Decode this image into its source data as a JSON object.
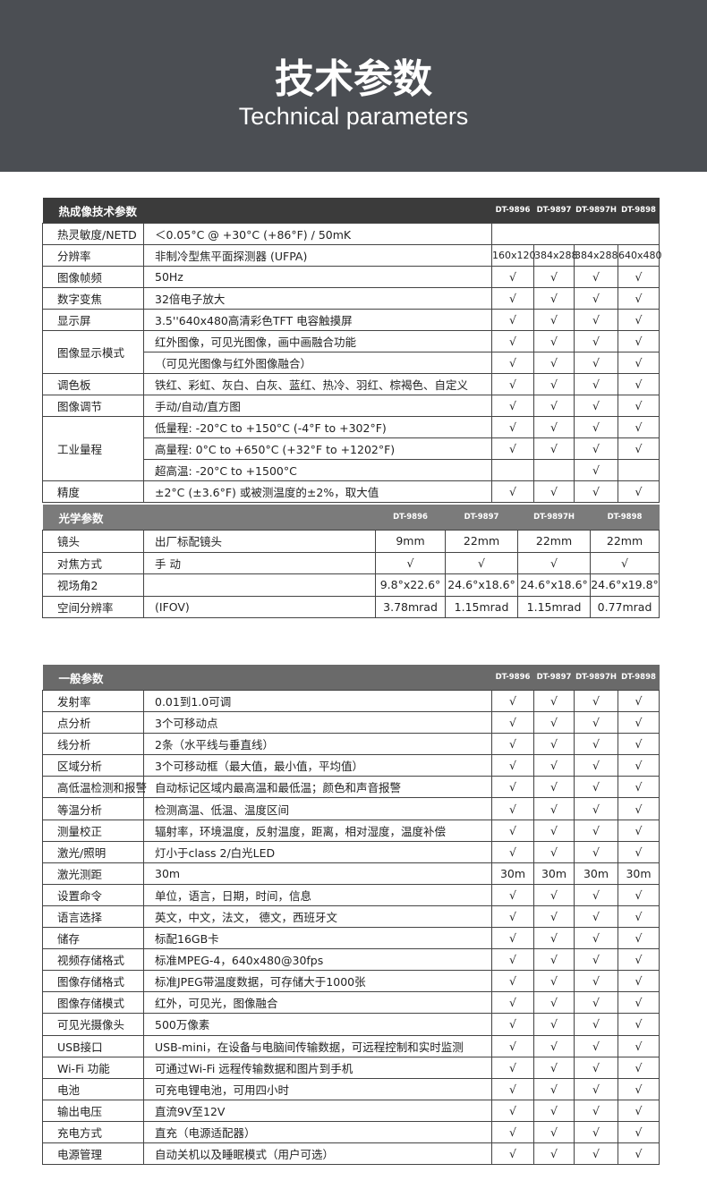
{
  "header": {
    "title": "技术参数",
    "subtitle": "Technical parameters"
  },
  "thermal": {
    "title": "热成像技术参数",
    "models": [
      "DT-9896",
      "DT-9897",
      "DT-9897H",
      "DT-9898"
    ],
    "rows": [
      {
        "label": "热灵敏度/NETD",
        "lines": [
          {
            "desc": "＜0.05°C @ +30°C (+86°F) / 50mK"
          }
        ]
      },
      {
        "label": "分辨率",
        "lines": [
          {
            "desc": "非制冷型焦平面探测器 (UFPA)",
            "cells": [
              "160x120",
              "384x288",
              "384x288",
              "640x480"
            ]
          }
        ]
      },
      {
        "label": "图像帧频",
        "lines": [
          {
            "desc": "50Hz",
            "cells": [
              "√",
              "√",
              "√",
              "√"
            ]
          }
        ]
      },
      {
        "label": "数字变焦",
        "lines": [
          {
            "desc": "32倍电子放大",
            "cells": [
              "√",
              "√",
              "√",
              "√"
            ]
          }
        ]
      },
      {
        "label": "显示屏",
        "lines": [
          {
            "desc": "3.5''640x480高清彩色TFT 电容触摸屏",
            "cells": [
              "√",
              "√",
              "√",
              "√"
            ]
          }
        ]
      },
      {
        "label": "图像显示模式",
        "lines": [
          {
            "desc": "红外图像，可见光图像，画中画融合功能",
            "cells": [
              "√",
              "√",
              "√",
              "√"
            ]
          },
          {
            "desc": "（可见光图像与红外图像融合）",
            "cells": [
              "√",
              "√",
              "√",
              "√"
            ]
          }
        ]
      },
      {
        "label": "调色板",
        "lines": [
          {
            "desc": "铁红、彩虹、灰白、白灰、蓝红、热冷、羽红、棕褐色、自定义",
            "cells": [
              "√",
              "√",
              "√",
              "√"
            ]
          }
        ]
      },
      {
        "label": "图像调节",
        "lines": [
          {
            "desc": "手动/自动/直方图",
            "cells": [
              "√",
              "√",
              "√",
              "√"
            ]
          }
        ]
      },
      {
        "label": "工业量程",
        "lines": [
          {
            "desc": "低量程: -20°C to +150°C (-4°F to +302°F)",
            "cells": [
              "√",
              "√",
              "√",
              "√"
            ]
          },
          {
            "desc": "高量程: 0°C to +650°C (+32°F to +1202°F)",
            "cells": [
              "√",
              "√",
              "√",
              "√"
            ]
          },
          {
            "desc": "超高温: -20°C to +1500°C",
            "cells": [
              null,
              null,
              "√",
              null
            ]
          }
        ]
      },
      {
        "label": "精度",
        "lines": [
          {
            "desc": "±2°C (±3.6°F) 或被测温度的±2%，取大值",
            "cells": [
              "√",
              "√",
              "√",
              "√"
            ]
          }
        ]
      }
    ]
  },
  "optical": {
    "title": "光学参数",
    "models": [
      "DT-9896",
      "DT-9897",
      "DT-9897H",
      "DT-9898"
    ],
    "rows": [
      {
        "label": "镜头",
        "lines": [
          {
            "desc": "出厂标配镜头",
            "cells": [
              "9mm",
              "22mm",
              "22mm",
              "22mm"
            ]
          }
        ]
      },
      {
        "label": "对焦方式",
        "lines": [
          {
            "desc": "手 动",
            "cells": [
              "√",
              "√",
              "√",
              "√"
            ]
          }
        ]
      },
      {
        "label": "视场角2",
        "lines": [
          {
            "desc": null,
            "cells": [
              "9.8°x22.6°",
              "24.6°x18.6°",
              "24.6°x18.6°",
              "24.6°x19.8°"
            ]
          }
        ]
      },
      {
        "label": "空间分辨率",
        "lines": [
          {
            "desc": "(IFOV)",
            "cells": [
              "3.78mrad",
              "1.15mrad",
              "1.15mrad",
              "0.77mrad"
            ]
          }
        ]
      }
    ]
  },
  "general": {
    "title": "一般参数",
    "models": [
      "DT-9896",
      "DT-9897",
      "DT-9897H",
      "DT-9898"
    ],
    "rows": [
      {
        "label": "发射率",
        "lines": [
          {
            "desc": "0.01到1.0可调",
            "cells": [
              "√",
              "√",
              "√",
              "√"
            ]
          }
        ]
      },
      {
        "label": "点分析",
        "lines": [
          {
            "desc": "3个可移动点",
            "cells": [
              "√",
              "√",
              "√",
              "√"
            ]
          }
        ]
      },
      {
        "label": "线分析",
        "lines": [
          {
            "desc": "2条（水平线与垂直线）",
            "cells": [
              "√",
              "√",
              "√",
              "√"
            ]
          }
        ]
      },
      {
        "label": "区域分析",
        "lines": [
          {
            "desc": "3个可移动框（最大值，最小值，平均值）",
            "cells": [
              "√",
              "√",
              "√",
              "√"
            ]
          }
        ]
      },
      {
        "label": "高低温检测和报警",
        "lines": [
          {
            "desc": "自动标记区域内最高温和最低温；颜色和声音报警",
            "cells": [
              "√",
              "√",
              "√",
              "√"
            ]
          }
        ]
      },
      {
        "label": "等温分析",
        "lines": [
          {
            "desc": "检测高温、低温、温度区间",
            "cells": [
              "√",
              "√",
              "√",
              "√"
            ]
          }
        ]
      },
      {
        "label": "测量校正",
        "lines": [
          {
            "desc": "辐射率，环境温度，反射温度，距离，相对湿度，温度补偿",
            "cells": [
              "√",
              "√",
              "√",
              "√"
            ]
          }
        ]
      },
      {
        "label": "激光/照明",
        "lines": [
          {
            "desc": "灯小于class 2/白光LED",
            "cells": [
              "√",
              "√",
              "√",
              "√"
            ]
          }
        ]
      },
      {
        "label": "激光测距",
        "lines": [
          {
            "desc": "30m",
            "cells": [
              "30m",
              "30m",
              "30m",
              "30m"
            ]
          }
        ]
      },
      {
        "label": "设置命令",
        "lines": [
          {
            "desc": "单位，语言，日期，时间，信息",
            "cells": [
              "√",
              "√",
              "√",
              "√"
            ]
          }
        ]
      },
      {
        "label": "语言选择",
        "lines": [
          {
            "desc": "英文，中文，法文， 德文，西班牙文",
            "cells": [
              "√",
              "√",
              "√",
              "√"
            ]
          }
        ]
      },
      {
        "label": "储存",
        "lines": [
          {
            "desc": "标配16GB卡",
            "cells": [
              "√",
              "√",
              "√",
              "√"
            ]
          }
        ]
      },
      {
        "label": "视频存储格式",
        "lines": [
          {
            "desc": "标准MPEG-4，640x480@30fps",
            "cells": [
              "√",
              "√",
              "√",
              "√"
            ]
          }
        ]
      },
      {
        "label": "图像存储格式",
        "lines": [
          {
            "desc": "标准JPEG带温度数据，可存储大于1000张",
            "cells": [
              "√",
              "√",
              "√",
              "√"
            ]
          }
        ]
      },
      {
        "label": "图像存储模式",
        "lines": [
          {
            "desc": "红外，可见光，图像融合",
            "cells": [
              "√",
              "√",
              "√",
              "√"
            ]
          }
        ]
      },
      {
        "label": "可见光摄像头",
        "lines": [
          {
            "desc": "500万像素",
            "cells": [
              "√",
              "√",
              "√",
              "√"
            ]
          }
        ]
      },
      {
        "label": "USB接口",
        "lines": [
          {
            "desc": "USB-mini，在设备与电脑间传输数据，可远程控制和实时监测",
            "cells": [
              "√",
              "√",
              "√",
              "√"
            ]
          }
        ]
      },
      {
        "label": "Wi-Fi 功能",
        "lines": [
          {
            "desc": "可通过Wi-Fi 远程传输数据和图片到手机",
            "cells": [
              "√",
              "√",
              "√",
              "√"
            ]
          }
        ]
      },
      {
        "label": "电池",
        "lines": [
          {
            "desc": "可充电锂电池，可用四小时",
            "cells": [
              "√",
              "√",
              "√",
              "√"
            ]
          }
        ]
      },
      {
        "label": "输出电压",
        "lines": [
          {
            "desc": "直流9V至12V",
            "cells": [
              "√",
              "√",
              "√",
              "√"
            ]
          }
        ]
      },
      {
        "label": "充电方式",
        "lines": [
          {
            "desc": "直充（电源适配器）",
            "cells": [
              "√",
              "√",
              "√",
              "√"
            ]
          }
        ]
      },
      {
        "label": "电源管理",
        "lines": [
          {
            "desc": "自动关机以及睡眠模式（用户可选）",
            "cells": [
              "√",
              "√",
              "√",
              "√"
            ]
          }
        ]
      }
    ]
  }
}
